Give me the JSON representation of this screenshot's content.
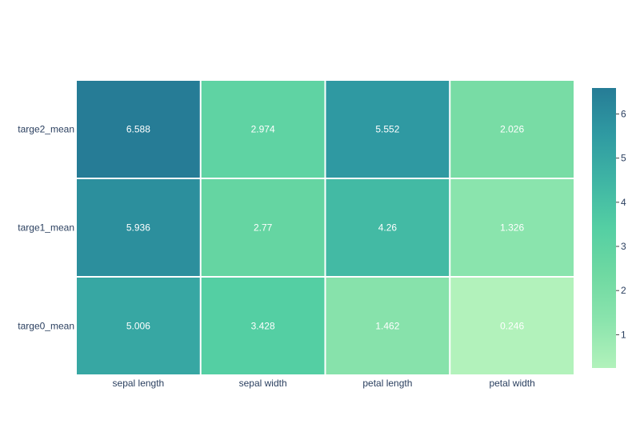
{
  "chart_data": {
    "type": "heatmap",
    "title": "",
    "xlabel": "",
    "ylabel": "",
    "x_categories": [
      "sepal length",
      "sepal width",
      "petal length",
      "petal width"
    ],
    "y_categories": [
      "targe2_mean",
      "targe1_mean",
      "targe0_mean"
    ],
    "z": [
      [
        6.588,
        2.974,
        5.552,
        2.026
      ],
      [
        5.936,
        2.77,
        4.26,
        1.326
      ],
      [
        5.006,
        3.428,
        1.462,
        0.246
      ]
    ],
    "text": [
      [
        "6.588",
        "2.974",
        "5.552",
        "2.026"
      ],
      [
        "5.936",
        "2.77",
        "4.26",
        "1.326"
      ],
      [
        "5.006",
        "3.428",
        "1.462",
        "0.246"
      ]
    ],
    "colorscale": {
      "name": "emrld",
      "colors": [
        "#b2f2bb",
        "#8be4ad",
        "#6fd9a2",
        "#54cfa3",
        "#3fb5a4",
        "#2f9aa2",
        "#267c96"
      ]
    },
    "zrange": [
      0.246,
      6.588
    ],
    "colorbar": {
      "ticks": [
        1,
        2,
        3,
        4,
        5,
        6
      ],
      "tick_labels": [
        "1",
        "2",
        "3",
        "4",
        "5",
        "6"
      ]
    },
    "grid": false,
    "legend": "none"
  }
}
